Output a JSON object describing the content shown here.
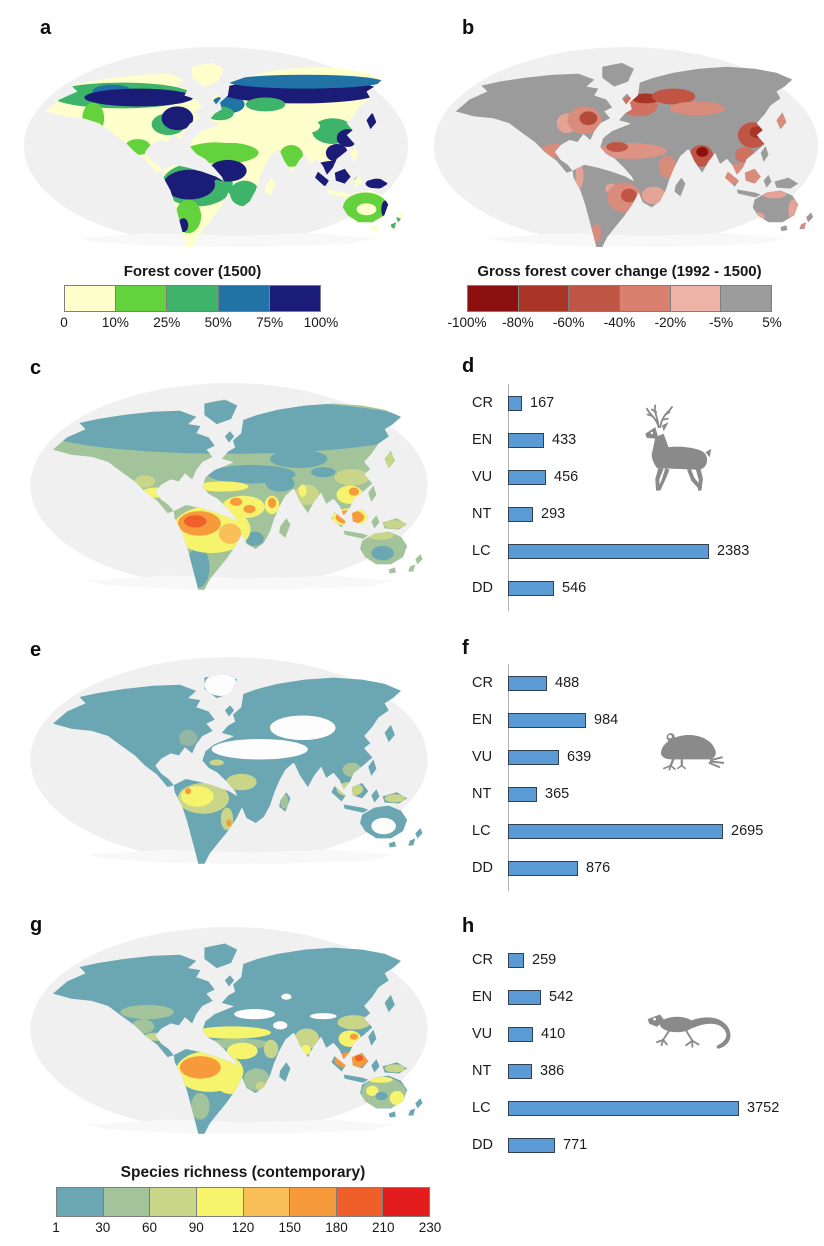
{
  "panels": {
    "a": "a",
    "b": "b",
    "c": "c",
    "d": "d",
    "e": "e",
    "f": "f",
    "g": "g",
    "h": "h"
  },
  "colors": {
    "bar_blue": "#5b9bd5",
    "silhouette_gray": "#8a8a8a",
    "ocean_gray": "#f0f0f1",
    "forest_cover_palette": [
      "#ffffcc",
      "#63d23c",
      "#3eb36a",
      "#2273a5",
      "#1b1b78"
    ],
    "forest_change_palette": [
      "#8d1010",
      "#a93526",
      "#c05545",
      "#d9806f",
      "#efb4a8",
      "#9c9c9c"
    ],
    "richness_palette": [
      "#6ba7b2",
      "#a3c39b",
      "#c9d588",
      "#f5f46c",
      "#f9c059",
      "#f79a3c",
      "#ee5f2a",
      "#e31d1d"
    ]
  },
  "chart_data": [
    {
      "type": "bar",
      "panel": "d",
      "icon": "deer-silhouette",
      "categories": [
        "CR",
        "EN",
        "VU",
        "NT",
        "LC",
        "DD"
      ],
      "values": [
        167,
        433,
        456,
        293,
        2383,
        546
      ],
      "orientation": "horizontal",
      "bar_color": "#5b9bd5",
      "value_labels": true,
      "xlim": [
        0,
        3500
      ],
      "axis_line": true
    },
    {
      "type": "bar",
      "panel": "f",
      "icon": "frog-silhouette",
      "categories": [
        "CR",
        "EN",
        "VU",
        "NT",
        "LC",
        "DD"
      ],
      "values": [
        488,
        984,
        639,
        365,
        2695,
        876
      ],
      "orientation": "horizontal",
      "bar_color": "#5b9bd5",
      "value_labels": true,
      "xlim": [
        0,
        3700
      ],
      "axis_line": true
    },
    {
      "type": "bar",
      "panel": "h",
      "icon": "lizard-silhouette",
      "categories": [
        "CR",
        "EN",
        "VU",
        "NT",
        "LC",
        "DD"
      ],
      "values": [
        259,
        542,
        410,
        386,
        3752,
        771
      ],
      "orientation": "horizontal",
      "bar_color": "#5b9bd5",
      "value_labels": true,
      "xlim": [
        0,
        4800
      ],
      "axis_line": false
    },
    {
      "type": "colorbar",
      "panel": "a",
      "title": "Forest cover (1500)",
      "tick_labels": [
        "0",
        "10%",
        "25%",
        "50%",
        "75%",
        "100%"
      ],
      "colors": [
        "#ffffcc",
        "#63d23c",
        "#3eb36a",
        "#2273a5",
        "#1b1b78"
      ]
    },
    {
      "type": "colorbar",
      "panel": "b",
      "title": "Gross forest cover change (1992 - 1500)",
      "tick_labels": [
        "-100%",
        "-80%",
        "-60%",
        "-40%",
        "-20%",
        "-5%",
        "5%"
      ],
      "colors": [
        "#8d1010",
        "#a93526",
        "#c05545",
        "#d9806f",
        "#efb4a8",
        "#9c9c9c"
      ]
    },
    {
      "type": "colorbar",
      "panel": "g",
      "title": "Species richness (contemporary)",
      "tick_labels": [
        "1",
        "30",
        "60",
        "90",
        "120",
        "150",
        "180",
        "210",
        "230"
      ],
      "colors": [
        "#6ba7b2",
        "#a3c39b",
        "#c9d588",
        "#f5f46c",
        "#f9c059",
        "#f79a3c",
        "#ee5f2a",
        "#e31d1d"
      ]
    },
    {
      "type": "map",
      "panel": "a",
      "projection": "Robinson",
      "content": "Global forest cover in year 1500; dark navy = dense forest (Amazon, Congo, SE Asia, boreal belt), pale yellow = open land (Sahara, Central Asia)"
    },
    {
      "type": "map",
      "panel": "b",
      "projection": "Robinson",
      "content": "Gross forest cover change 1992 - 1500; gray = little change, red/pink = forest loss (eastern US, Europe, India, East China, SE Asia, Atlantic Brazil, West Africa)"
    },
    {
      "type": "map",
      "panel": "c",
      "projection": "Robinson",
      "content": "Contemporary species richness (deer-silhouette taxon); orange hotspots in Amazon/Andes, Congo basin, Southeast Asia"
    },
    {
      "type": "map",
      "panel": "e",
      "projection": "Robinson",
      "content": "Contemporary species richness (frog-silhouette taxon); mostly teal, yellow hotspot in western Amazon, white no-data deserts"
    },
    {
      "type": "map",
      "panel": "g",
      "projection": "Robinson",
      "content": "Contemporary species richness (lizard-silhouette taxon); orange Amazon and Sundaland hotspots, yellow sub-Saharan band and Australia patches"
    }
  ]
}
